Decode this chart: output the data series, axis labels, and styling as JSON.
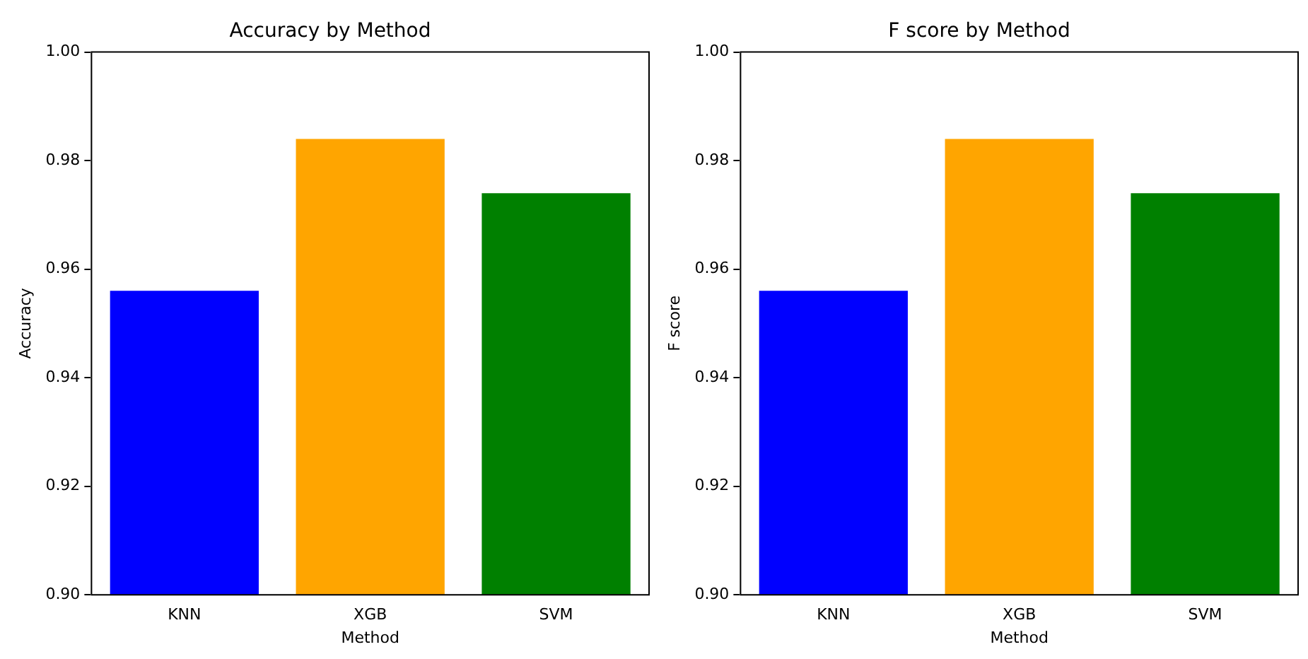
{
  "chart_data": [
    {
      "type": "bar",
      "title": "Accuracy by Method",
      "xlabel": "Method",
      "ylabel": "Accuracy",
      "categories": [
        "KNN",
        "XGB",
        "SVM"
      ],
      "values": [
        0.956,
        0.984,
        0.974
      ],
      "colors": [
        "#0000ff",
        "#ffa500",
        "#008000"
      ],
      "ylim": [
        0.9,
        1.0
      ],
      "yticks": [
        {
          "value": 0.9,
          "label": "0.90"
        },
        {
          "value": 0.92,
          "label": "0.92"
        },
        {
          "value": 0.94,
          "label": "0.94"
        },
        {
          "value": 0.96,
          "label": "0.96"
        },
        {
          "value": 0.98,
          "label": "0.98"
        },
        {
          "value": 1.0,
          "label": "1.00"
        }
      ],
      "grid": false,
      "legend": false
    },
    {
      "type": "bar",
      "title": "F score by Method",
      "xlabel": "Method",
      "ylabel": "F score",
      "categories": [
        "KNN",
        "XGB",
        "SVM"
      ],
      "values": [
        0.956,
        0.984,
        0.974
      ],
      "colors": [
        "#0000ff",
        "#ffa500",
        "#008000"
      ],
      "ylim": [
        0.9,
        1.0
      ],
      "yticks": [
        {
          "value": 0.9,
          "label": "0.90"
        },
        {
          "value": 0.92,
          "label": "0.92"
        },
        {
          "value": 0.94,
          "label": "0.94"
        },
        {
          "value": 0.96,
          "label": "0.96"
        },
        {
          "value": 0.98,
          "label": "0.98"
        },
        {
          "value": 1.0,
          "label": "1.00"
        }
      ],
      "grid": false,
      "legend": false
    }
  ]
}
